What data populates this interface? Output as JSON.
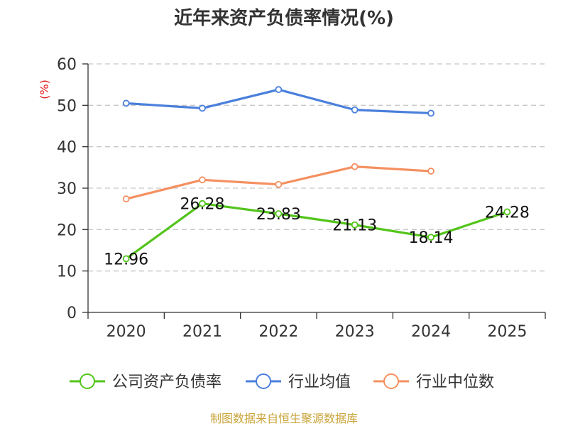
{
  "chart_data": {
    "type": "line",
    "title": "近年来资产负债率情况(%)",
    "ylabel": "(%)",
    "ylim": [
      0,
      60
    ],
    "y_ticks": [
      0,
      10,
      20,
      30,
      40,
      50,
      60
    ],
    "categories": [
      "2020",
      "2021",
      "2022",
      "2023",
      "2024",
      "2025"
    ],
    "grid": true,
    "legend_position": "bottom",
    "series": [
      {
        "name": "公司资产负债率",
        "color": "#52c41a",
        "values": [
          12.96,
          26.28,
          23.83,
          21.13,
          18.14,
          24.28
        ],
        "labels": [
          "12.96",
          "26.28",
          "23.83",
          "21.13",
          "18.14",
          "24.28"
        ]
      },
      {
        "name": "行业均值",
        "color": "#4a7fdc",
        "values": [
          50.5,
          49.3,
          53.8,
          48.9,
          48.1,
          null
        ]
      },
      {
        "name": "行业中位数",
        "color": "#f49060",
        "values": [
          27.4,
          32.0,
          30.9,
          35.2,
          34.1,
          null
        ]
      }
    ],
    "unit_color": "#e02020"
  },
  "source": {
    "text": "制图数据来自恒生聚源数据库",
    "color": "#c9a43a"
  }
}
